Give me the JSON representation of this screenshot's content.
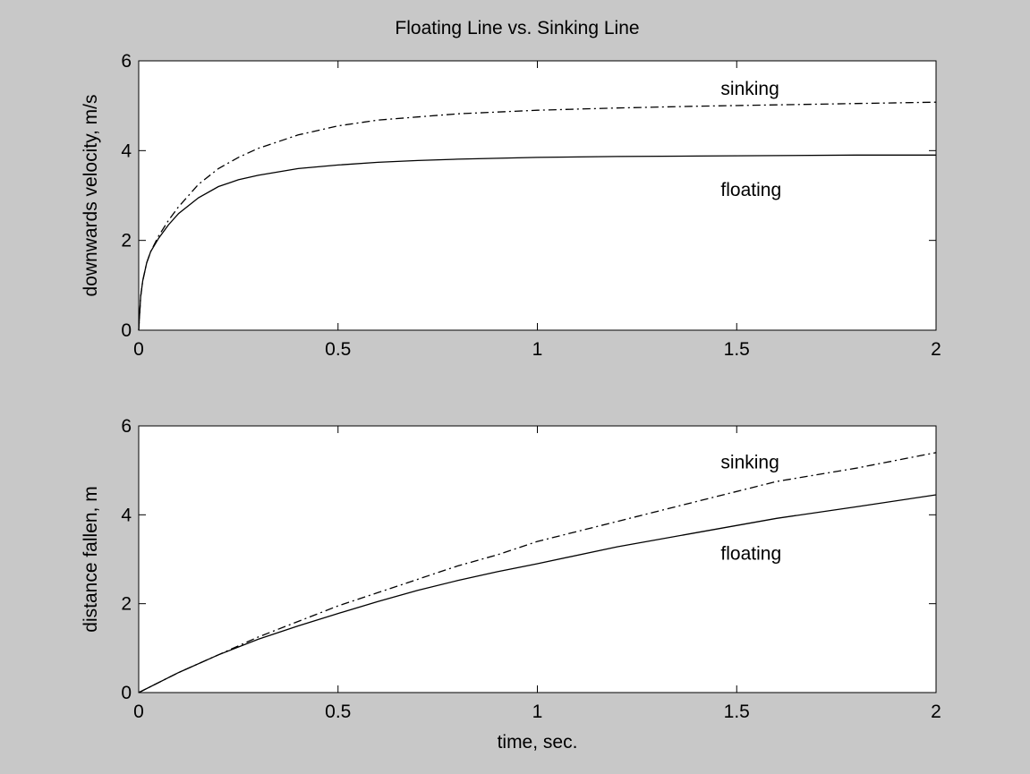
{
  "figure": {
    "title": "Floating Line vs. Sinking Line",
    "background": "#c8c8c8",
    "axes_color": "#ffffff",
    "line_color": "#000000"
  },
  "chart_data": [
    {
      "type": "line",
      "title": "Floating Line vs. Sinking Line",
      "xlabel": "",
      "ylabel": "downwards velocity, m/s",
      "xlim": [
        0,
        2
      ],
      "ylim": [
        0,
        6
      ],
      "xticks": [
        0,
        0.5,
        1,
        1.5,
        2
      ],
      "xtick_labels": [
        "0",
        "0.5",
        "1",
        "1.5",
        "2"
      ],
      "yticks": [
        0,
        2,
        4,
        6
      ],
      "ytick_labels": [
        "0",
        "2",
        "4",
        "6"
      ],
      "grid": false,
      "series": [
        {
          "style": "dash-dot",
          "x": [
            0,
            0.005,
            0.01,
            0.02,
            0.03,
            0.05,
            0.075,
            0.1,
            0.15,
            0.2,
            0.25,
            0.3,
            0.4,
            0.5,
            0.6,
            0.7,
            0.8,
            1.0,
            1.2,
            1.4,
            1.6,
            1.8,
            2.0
          ],
          "y": [
            0,
            0.75,
            1.1,
            1.5,
            1.75,
            2.1,
            2.45,
            2.75,
            3.25,
            3.6,
            3.85,
            4.05,
            4.35,
            4.55,
            4.68,
            4.75,
            4.82,
            4.9,
            4.95,
            4.99,
            5.02,
            5.05,
            5.08
          ]
        },
        {
          "style": "solid",
          "x": [
            0,
            0.005,
            0.01,
            0.02,
            0.03,
            0.05,
            0.075,
            0.1,
            0.15,
            0.2,
            0.25,
            0.3,
            0.4,
            0.5,
            0.6,
            0.7,
            0.8,
            1.0,
            1.2,
            1.4,
            1.6,
            1.8,
            2.0
          ],
          "y": [
            0,
            0.75,
            1.1,
            1.5,
            1.75,
            2.05,
            2.35,
            2.6,
            2.95,
            3.2,
            3.35,
            3.45,
            3.6,
            3.68,
            3.74,
            3.78,
            3.81,
            3.85,
            3.87,
            3.88,
            3.89,
            3.9,
            3.9
          ]
        }
      ],
      "annotations": [
        {
          "text": "sinking",
          "x": 1.46,
          "y": 5.4
        },
        {
          "text": "floating",
          "x": 1.46,
          "y": 3.15
        }
      ]
    },
    {
      "type": "line",
      "title": "",
      "xlabel": "time, sec.",
      "ylabel": "distance fallen, m",
      "xlim": [
        0,
        2
      ],
      "ylim": [
        0,
        6
      ],
      "xticks": [
        0,
        0.5,
        1,
        1.5,
        2
      ],
      "xtick_labels": [
        "0",
        "0.5",
        "1",
        "1.5",
        "2"
      ],
      "yticks": [
        0,
        2,
        4,
        6
      ],
      "ytick_labels": [
        "0",
        "2",
        "4",
        "6"
      ],
      "grid": false,
      "series": [
        {
          "style": "dash-dot",
          "x": [
            0,
            0.1,
            0.2,
            0.3,
            0.4,
            0.5,
            0.6,
            0.7,
            0.8,
            0.9,
            1.0,
            1.2,
            1.4,
            1.6,
            1.8,
            2.0
          ],
          "y": [
            0,
            0.45,
            0.85,
            1.25,
            1.6,
            1.95,
            2.25,
            2.55,
            2.85,
            3.1,
            3.4,
            3.85,
            4.3,
            4.75,
            5.05,
            5.4
          ]
        },
        {
          "style": "solid",
          "x": [
            0,
            0.1,
            0.2,
            0.3,
            0.4,
            0.5,
            0.6,
            0.7,
            0.8,
            0.9,
            1.0,
            1.2,
            1.4,
            1.6,
            1.8,
            2.0
          ],
          "y": [
            0,
            0.45,
            0.85,
            1.2,
            1.5,
            1.78,
            2.05,
            2.3,
            2.52,
            2.72,
            2.9,
            3.28,
            3.6,
            3.92,
            4.18,
            4.45
          ]
        }
      ],
      "annotations": [
        {
          "text": "sinking",
          "x": 1.46,
          "y": 5.2
        },
        {
          "text": "floating",
          "x": 1.46,
          "y": 3.15
        }
      ]
    }
  ]
}
